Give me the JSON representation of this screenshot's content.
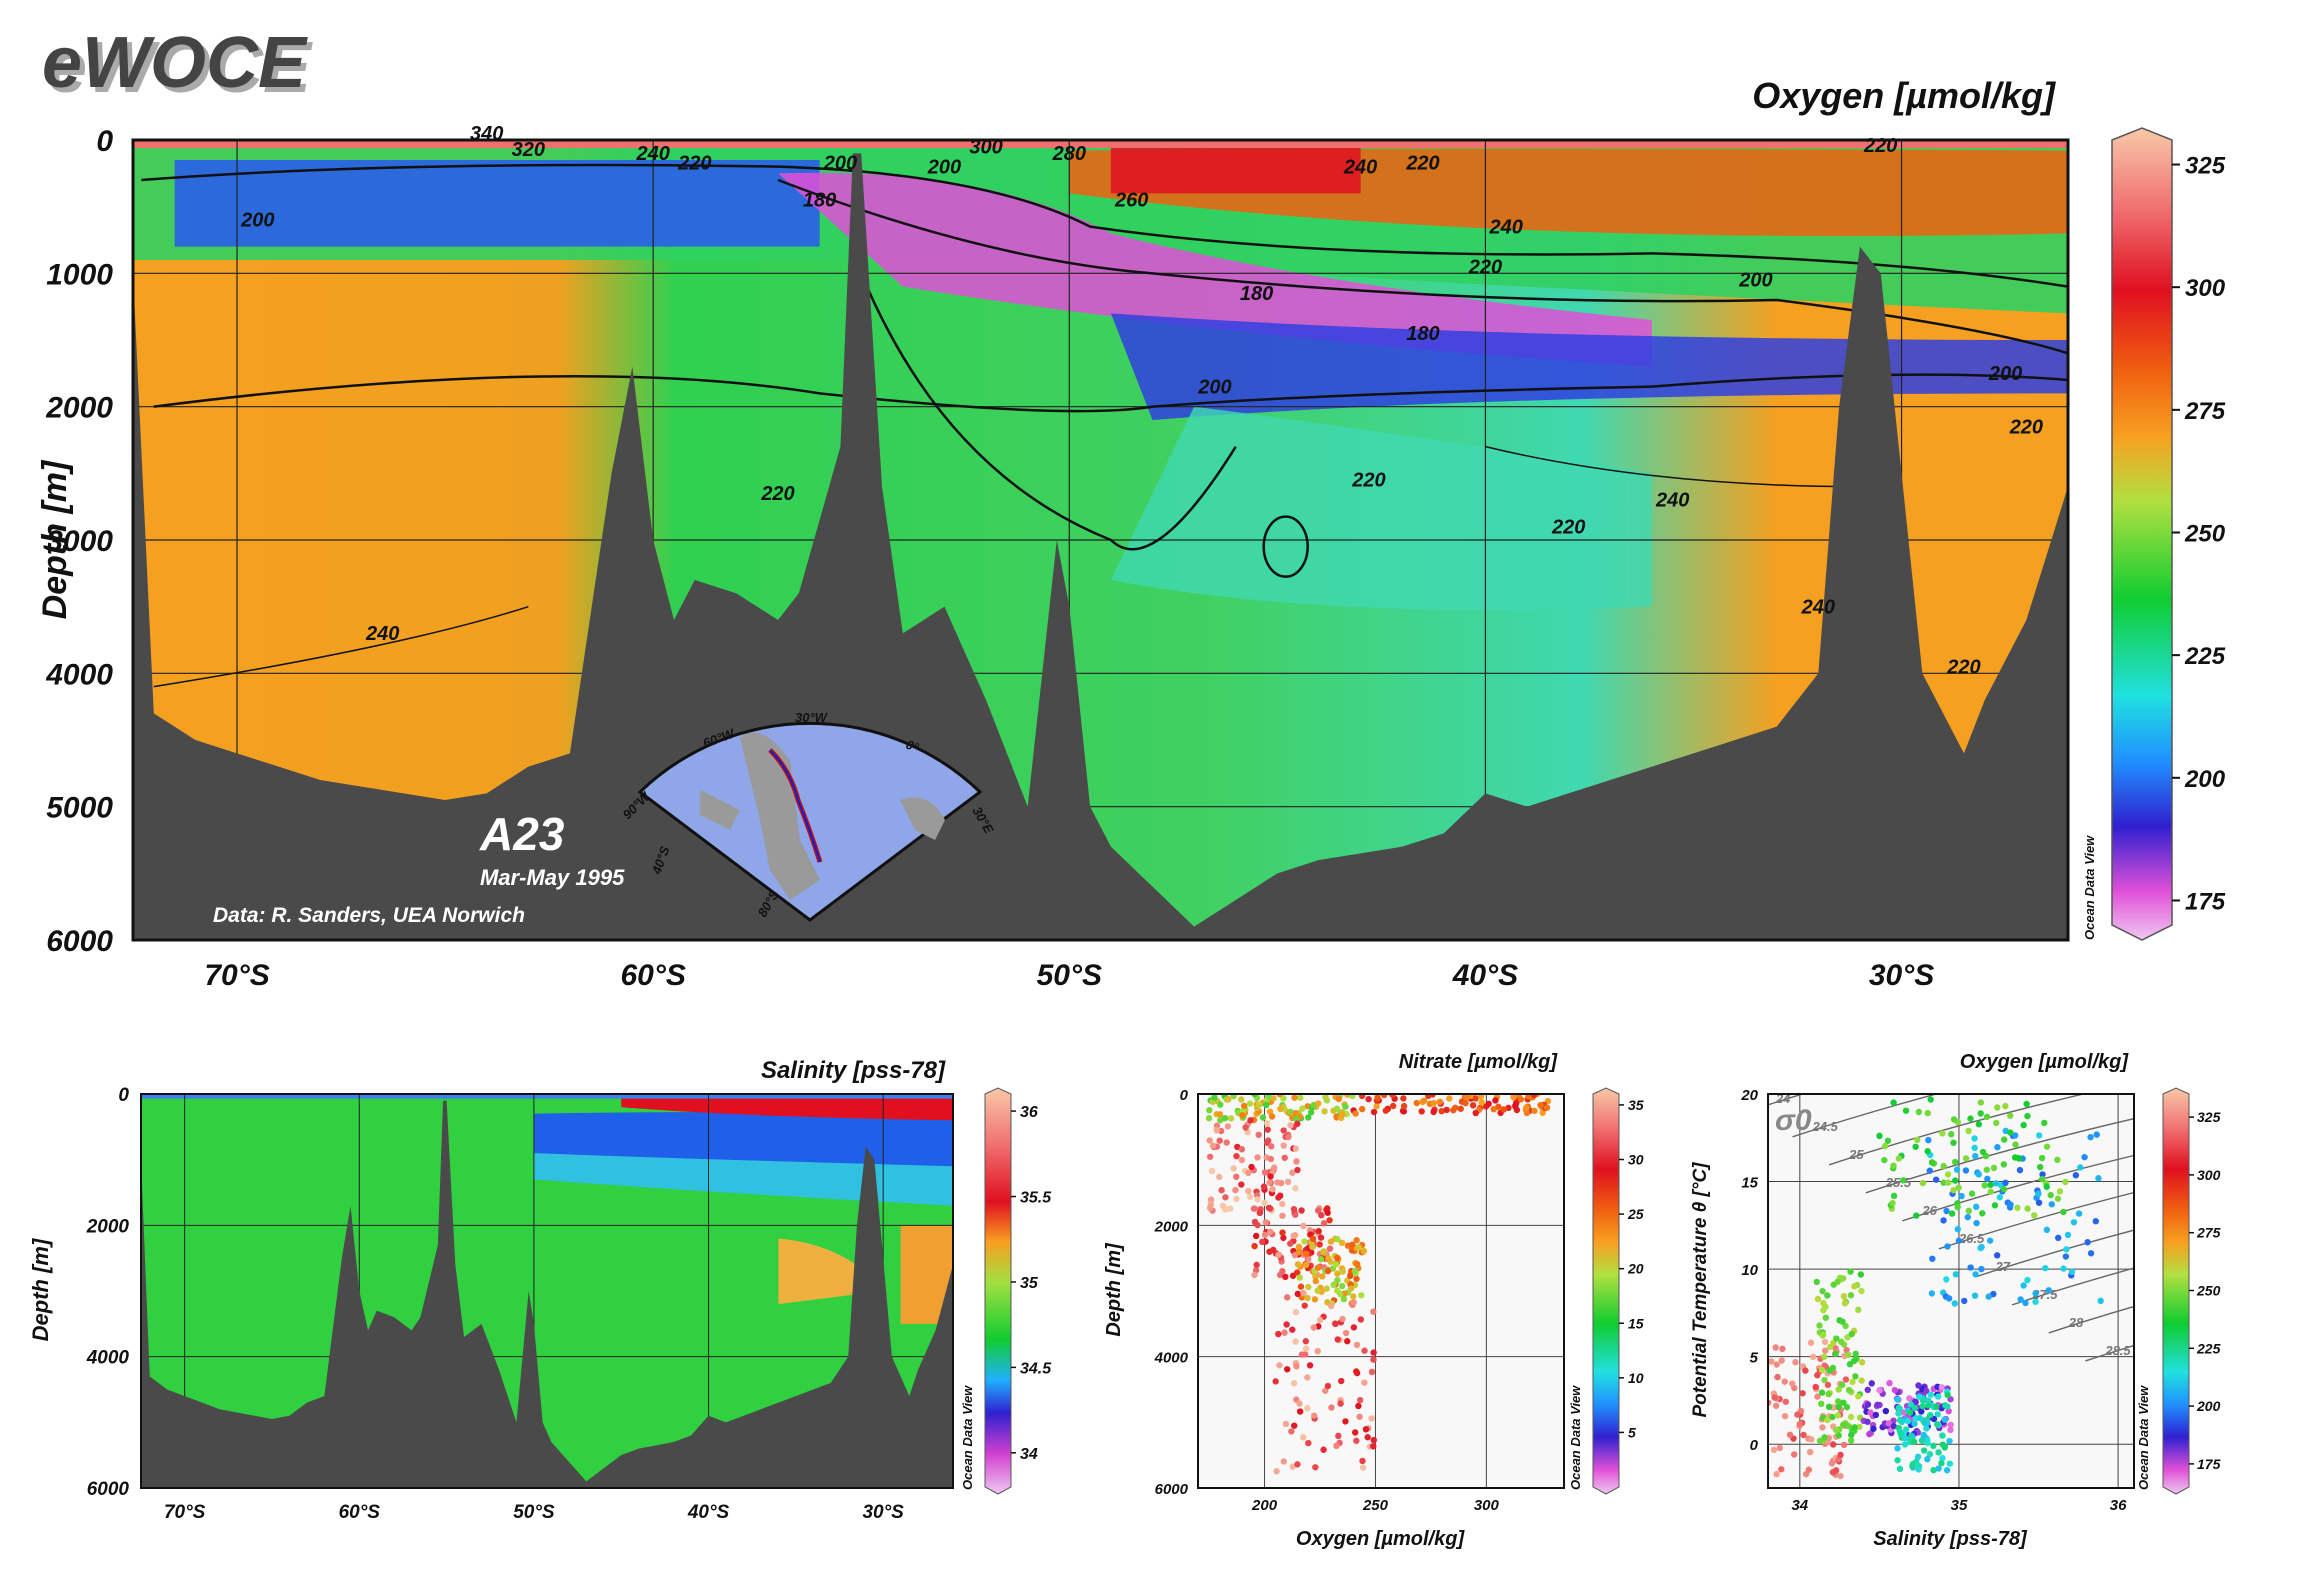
{
  "brand": "eWOCE",
  "main": {
    "title": "Oxygen [µmol/kg]",
    "ylabel": "Depth [m]",
    "section": "A23",
    "period": "Mar-May 1995",
    "credit": "Data: R. Sanders, UEA Norwich",
    "odv_label": "Ocean Data View",
    "colorbar_ticks": [
      "175",
      "200",
      "225",
      "250",
      "275",
      "300",
      "325"
    ],
    "inset_labels": [
      "90°W",
      "60°W",
      "30°W",
      "0°",
      "30°E",
      "40°S",
      "80°S"
    ]
  },
  "salinity": {
    "title": "Salinity [pss-78]",
    "ylabel": "Depth [m]",
    "odv_label": "Ocean Data View",
    "colorbar_ticks": [
      "34",
      "34.5",
      "35",
      "35.5",
      "36"
    ]
  },
  "nitrate": {
    "title": "Nitrate [µmol/kg]",
    "ylabel": "Depth [m]",
    "xlabel": "Oxygen [µmol/kg]",
    "odv_label": "Ocean Data View",
    "colorbar_ticks": [
      "5",
      "10",
      "15",
      "20",
      "25",
      "30",
      "35"
    ]
  },
  "ts": {
    "title": "Oxygen [µmol/kg]",
    "ylabel": "Potential Temperature θ [°C]",
    "xlabel": "Salinity [pss-78]",
    "sigma_label": "σ0",
    "odv_label": "Ocean Data View",
    "colorbar_ticks": [
      "175",
      "200",
      "225",
      "250",
      "275",
      "300",
      "325"
    ]
  },
  "chart_data": [
    {
      "type": "heatmap",
      "title": "Oxygen [µmol/kg]",
      "xlabel": "",
      "ylabel": "Depth [m]",
      "xlim": [
        -72.5,
        -26
      ],
      "ylim": [
        6000,
        0
      ],
      "x_ticks": [
        "70°S",
        "60°S",
        "50°S",
        "40°S",
        "30°S"
      ],
      "x_tick_values": [
        -70,
        -60,
        -50,
        -40,
        -30
      ],
      "y_ticks": [
        "0",
        "1000",
        "2000",
        "3000",
        "4000",
        "5000",
        "6000"
      ],
      "y_tick_values": [
        0,
        1000,
        2000,
        3000,
        4000,
        5000,
        6000
      ],
      "colorbar_range": [
        170,
        330
      ],
      "contour_labels": [
        "340",
        "320",
        "300",
        "280",
        "260",
        "240",
        "220",
        "200",
        "180"
      ],
      "bottom_depth_profile": {
        "lat": [
          -72.5,
          -72,
          -71,
          -70,
          -69,
          -68,
          -66,
          -65,
          -64,
          -63,
          -62,
          -61,
          -60.5,
          -60,
          -59.5,
          -59,
          -58,
          -57,
          -56.5,
          -55.5,
          -55.2,
          -55,
          -54.5,
          -54,
          -53,
          -52,
          -51,
          -50.3,
          -50,
          -49.5,
          -49,
          -48,
          -47,
          -46,
          -45,
          -44,
          -43,
          -42,
          -41,
          -40,
          -39,
          -37,
          -35,
          -34,
          -33,
          -32,
          -31.5,
          -31,
          -30.5,
          -30,
          -29.5,
          -29,
          -28.5,
          -28,
          -27,
          -26
        ],
        "depth": [
          1000,
          4300,
          4500,
          4600,
          4700,
          4800,
          4900,
          4950,
          4900,
          4700,
          4600,
          2500,
          1700,
          3000,
          3600,
          3300,
          3400,
          3600,
          3400,
          2300,
          100,
          100,
          2600,
          3700,
          3500,
          4200,
          5000,
          3000,
          3500,
          5000,
          5300,
          5600,
          5900,
          5700,
          5500,
          5400,
          5350,
          5300,
          5200,
          4900,
          5000,
          4800,
          4600,
          4500,
          4400,
          4000,
          2000,
          800,
          1000,
          2500,
          4000,
          4300,
          4600,
          4200,
          3600,
          2600
        ]
      }
    },
    {
      "type": "heatmap",
      "title": "Salinity [pss-78]",
      "ylabel": "Depth [m]",
      "xlim": [
        -72.5,
        -26
      ],
      "ylim": [
        6000,
        0
      ],
      "x_ticks": [
        "70°S",
        "60°S",
        "50°S",
        "40°S",
        "30°S"
      ],
      "x_tick_values": [
        -70,
        -60,
        -50,
        -40,
        -30
      ],
      "y_ticks": [
        "0",
        "2000",
        "4000",
        "6000"
      ],
      "y_tick_values": [
        0,
        2000,
        4000,
        6000
      ],
      "colorbar_range": [
        33.8,
        36.1
      ]
    },
    {
      "type": "scatter",
      "title": "Nitrate [µmol/kg]",
      "xlabel": "Oxygen [µmol/kg]",
      "ylabel": "Depth [m]",
      "xlim": [
        170,
        335
      ],
      "ylim": [
        6000,
        0
      ],
      "x_ticks": [
        "200",
        "250",
        "300"
      ],
      "x_tick_values": [
        200,
        250,
        300
      ],
      "y_ticks": [
        "0",
        "2000",
        "4000",
        "6000"
      ],
      "y_tick_values": [
        0,
        2000,
        4000,
        6000
      ],
      "colorbar_range": [
        0,
        36
      ],
      "clusters": [
        {
          "oxygen_range": [
            175,
            240
          ],
          "depth_range": [
            0,
            400
          ],
          "nitrate": 20
        },
        {
          "oxygen_range": [
            240,
            330
          ],
          "depth_range": [
            0,
            300
          ],
          "nitrate": 26
        },
        {
          "oxygen_range": [
            175,
            215
          ],
          "depth_range": [
            400,
            1800
          ],
          "nitrate": 33
        },
        {
          "oxygen_range": [
            195,
            230
          ],
          "depth_range": [
            1700,
            2800
          ],
          "nitrate": 31
        },
        {
          "oxygen_range": [
            215,
            245
          ],
          "depth_range": [
            2200,
            3200
          ],
          "nitrate": 22
        },
        {
          "oxygen_range": [
            205,
            250
          ],
          "depth_range": [
            3000,
            5800
          ],
          "nitrate": 32
        }
      ]
    },
    {
      "type": "scatter",
      "title": "Oxygen [µmol/kg]",
      "xlabel": "Salinity [pss-78]",
      "ylabel": "Potential Temperature θ [°C]",
      "xlim": [
        33.8,
        36.1
      ],
      "ylim": [
        -2.5,
        20
      ],
      "x_ticks": [
        "34",
        "35",
        "36"
      ],
      "x_tick_values": [
        34,
        35,
        36
      ],
      "y_ticks": [
        "0",
        "5",
        "10",
        "15",
        "20"
      ],
      "y_tick_values": [
        0,
        5,
        10,
        15,
        20
      ],
      "sigma_isopycnals": [
        "24",
        "24.5",
        "25",
        "25.5",
        "26",
        "26.5",
        "27",
        "27.5",
        "28",
        "28.5"
      ],
      "colorbar_range": [
        165,
        335
      ],
      "clusters": [
        {
          "salinity_range": [
            33.8,
            34.3
          ],
          "theta_range": [
            -2,
            6
          ],
          "oxygen": 320
        },
        {
          "salinity_range": [
            34.1,
            34.4
          ],
          "theta_range": [
            0,
            10
          ],
          "oxygen": 250
        },
        {
          "salinity_range": [
            34.4,
            34.95
          ],
          "theta_range": [
            0.5,
            3.5
          ],
          "oxygen": 180
        },
        {
          "salinity_range": [
            34.6,
            34.95
          ],
          "theta_range": [
            -1.5,
            3
          ],
          "oxygen": 220
        },
        {
          "salinity_range": [
            34.8,
            35.9
          ],
          "theta_range": [
            8,
            18
          ],
          "oxygen": 205
        },
        {
          "salinity_range": [
            34.5,
            35.7
          ],
          "theta_range": [
            13,
            20
          ],
          "oxygen": 245
        }
      ]
    }
  ]
}
